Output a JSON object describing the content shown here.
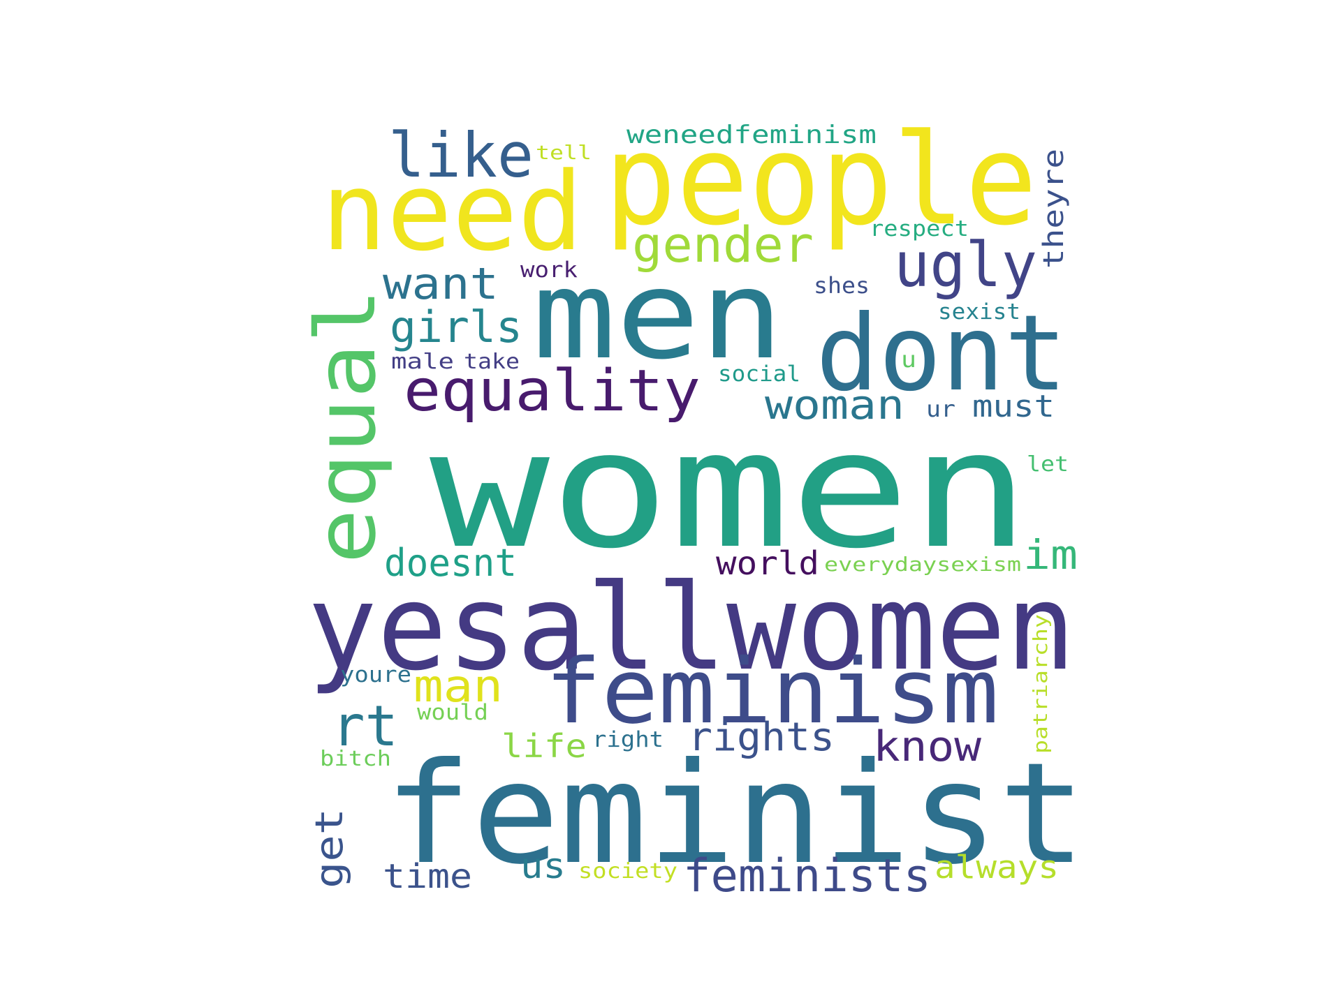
{
  "words": [
    {
      "text": "women",
      "color": "#22a085"
    },
    {
      "text": "people",
      "color": "#f2e51d"
    },
    {
      "text": "feminist",
      "color": "#2d708e"
    },
    {
      "text": "yesallwomen",
      "color": "#443a83"
    },
    {
      "text": "men",
      "color": "#297b8e"
    },
    {
      "text": "need",
      "color": "#f0e51e"
    },
    {
      "text": "dont",
      "color": "#2e6f8e"
    },
    {
      "text": "feminism",
      "color": "#3e4c8a"
    },
    {
      "text": "equal",
      "color": "#54c568"
    },
    {
      "text": "equality",
      "color": "#481b6d"
    },
    {
      "text": "like",
      "color": "#355f8d"
    },
    {
      "text": "ugly",
      "color": "#414487"
    },
    {
      "text": "gender",
      "color": "#a0da39"
    },
    {
      "text": "want",
      "color": "#2c728e"
    },
    {
      "text": "girls",
      "color": "#25858e"
    },
    {
      "text": "woman",
      "color": "#2a768e"
    },
    {
      "text": "rights",
      "color": "#3b528b"
    },
    {
      "text": "know",
      "color": "#482878"
    },
    {
      "text": "feminists",
      "color": "#3e4a89"
    },
    {
      "text": "man",
      "color": "#e0e21c"
    },
    {
      "text": "rt",
      "color": "#2a788e"
    },
    {
      "text": "doesnt",
      "color": "#1fa088"
    },
    {
      "text": "im",
      "color": "#35b779"
    },
    {
      "text": "world",
      "color": "#440f5e"
    },
    {
      "text": "weneedfeminism",
      "color": "#21a585"
    },
    {
      "text": "theyre",
      "color": "#3b518b"
    },
    {
      "text": "get",
      "color": "#3a548c"
    },
    {
      "text": "time",
      "color": "#3b528b"
    },
    {
      "text": "us",
      "color": "#287c8e"
    },
    {
      "text": "always",
      "color": "#b5de2b"
    },
    {
      "text": "life",
      "color": "#8bd646"
    },
    {
      "text": "must",
      "color": "#31678e"
    },
    {
      "text": "respect",
      "color": "#26ad81"
    },
    {
      "text": "work",
      "color": "#481f70"
    },
    {
      "text": "shes",
      "color": "#3c4f8a"
    },
    {
      "text": "sexist",
      "color": "#26838f"
    },
    {
      "text": "male",
      "color": "#433e85"
    },
    {
      "text": "take",
      "color": "#433e85"
    },
    {
      "text": "social",
      "color": "#1f9a8a"
    },
    {
      "text": "u",
      "color": "#5ec962"
    },
    {
      "text": "ur",
      "color": "#355f8d"
    },
    {
      "text": "let",
      "color": "#44bf70"
    },
    {
      "text": "everydaysexism",
      "color": "#7ad151"
    },
    {
      "text": "youre",
      "color": "#2d718e"
    },
    {
      "text": "would",
      "color": "#75d054"
    },
    {
      "text": "right",
      "color": "#2c718e"
    },
    {
      "text": "patriarchy",
      "color": "#b8de29"
    },
    {
      "text": "bitch",
      "color": "#6ccd5a"
    },
    {
      "text": "society",
      "color": "#c2df23"
    },
    {
      "text": "tell",
      "color": "#c0df25"
    }
  ]
}
